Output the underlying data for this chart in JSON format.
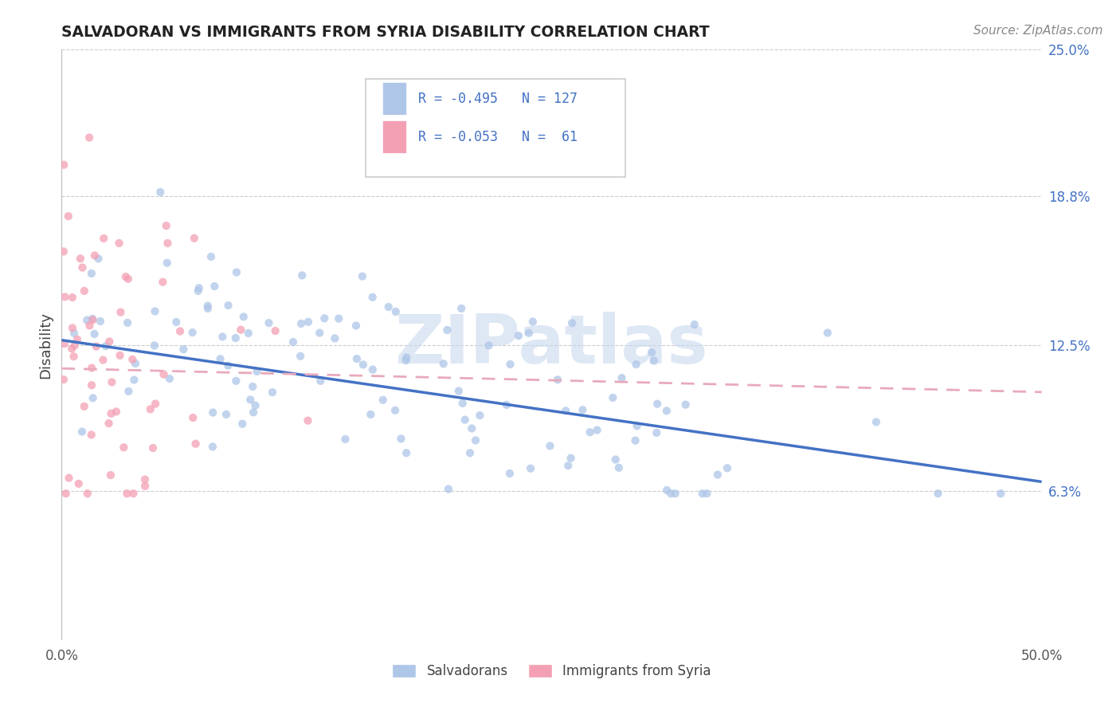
{
  "title": "SALVADORAN VS IMMIGRANTS FROM SYRIA DISABILITY CORRELATION CHART",
  "source": "Source: ZipAtlas.com",
  "ylabel": "Disability",
  "xlim": [
    0.0,
    0.5
  ],
  "ylim": [
    0.0,
    0.25
  ],
  "ytick_values": [
    0.063,
    0.125,
    0.188,
    0.25
  ],
  "ytick_labels": [
    "6.3%",
    "12.5%",
    "18.8%",
    "25.0%"
  ],
  "xtick_values": [
    0.0,
    0.5
  ],
  "xtick_labels": [
    "0.0%",
    "50.0%"
  ],
  "color_salvadoran": "#aec6e8",
  "color_syria": "#f4a0b4",
  "color_trend_salvadoran": "#4472c4",
  "color_trend_syria": "#e8aabb",
  "watermark_text": "ZIPatlas",
  "watermark_color": "#c8d8ee",
  "legend_r1": "R = -0.495",
  "legend_n1": "N = 127",
  "legend_r2": "R = -0.053",
  "legend_n2": "N =  61",
  "legend_text_color": "#4472c4",
  "title_color": "#222222",
  "source_color": "#888888",
  "ylabel_color": "#444444",
  "tick_color": "#555555",
  "grid_color": "#cccccc",
  "bg_color": "#ffffff"
}
